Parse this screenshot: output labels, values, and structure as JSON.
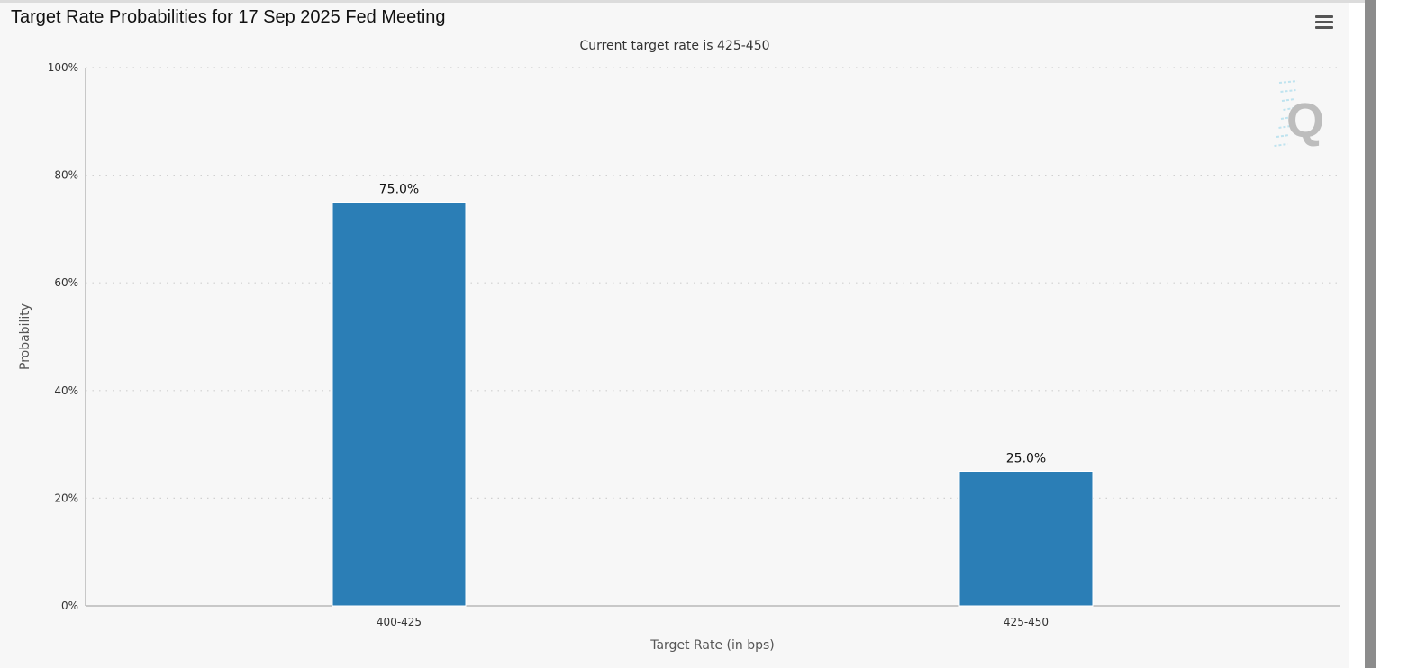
{
  "header": {
    "title": "Target Rate Probabilities for 17 Sep 2025 Fed Meeting",
    "menu_icon": "hamburger-menu-icon"
  },
  "watermark": {
    "text": "Q",
    "icon": "q-logo-icon"
  },
  "colors": {
    "bar": "#2b7eb6",
    "panel": "#f7f7f7",
    "grid": "#d0d0d0",
    "axis": "#999999"
  },
  "chart_data": {
    "type": "bar",
    "title": "Target Rate Probabilities for 17 Sep 2025 Fed Meeting",
    "subtitle": "Current target rate is 425-450",
    "categories": [
      "400-425",
      "425-450"
    ],
    "values": [
      75.0,
      25.0
    ],
    "data_labels": [
      "75.0%",
      "25.0%"
    ],
    "xlabel": "Target Rate (in bps)",
    "ylabel": "Probability",
    "ylim": [
      0,
      100
    ],
    "y_ticks": [
      0,
      20,
      40,
      60,
      80,
      100
    ],
    "y_tick_labels": [
      "0%",
      "20%",
      "40%",
      "60%",
      "80%",
      "100%"
    ],
    "grid": true,
    "legend": "none"
  }
}
